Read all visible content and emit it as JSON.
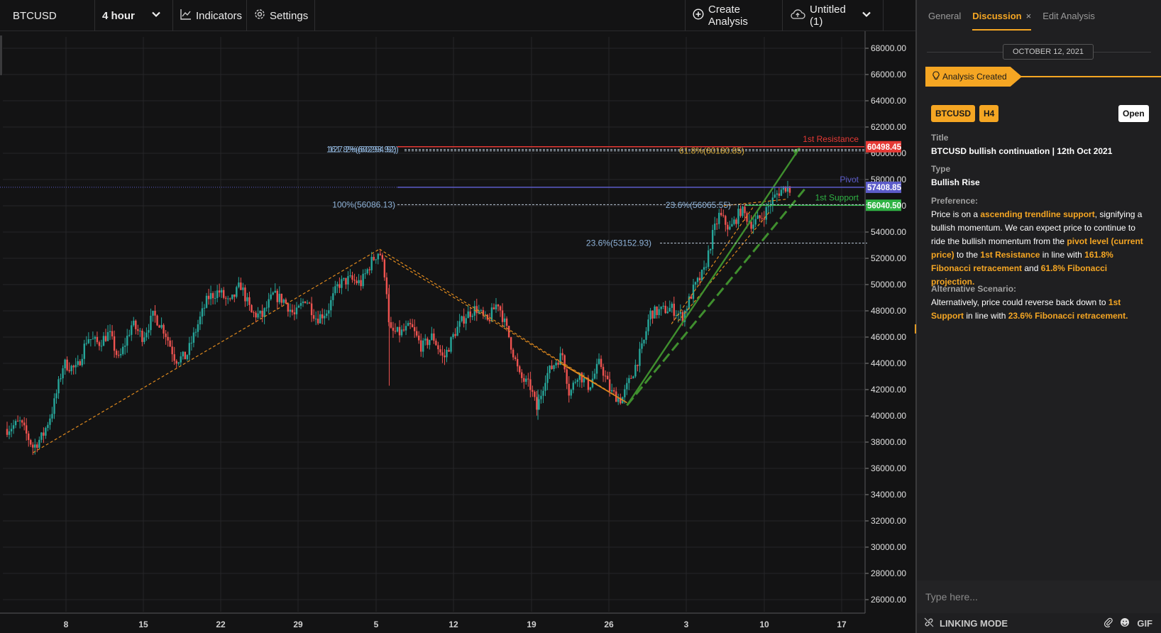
{
  "toolbar": {
    "symbol": "BTCUSD",
    "resolution": "4 hour",
    "indicators": "Indicators",
    "settings": "Settings",
    "create_analysis": "Create Analysis",
    "layout_name": "Untitled (1)"
  },
  "colors": {
    "up": "#26a69a",
    "down": "#ef5350",
    "accent": "#f5a623",
    "resistance": "#e53935",
    "pivot": "#5c5cc9",
    "support": "#2fb344",
    "fib": "#8fb3d9",
    "trend": "#e08a1e"
  },
  "chart_data": {
    "type": "candlestick",
    "price_axis": [
      "68000.00",
      "66000.00",
      "64000.00",
      "62000.00",
      "60000.00",
      "58000.00",
      "56000.00",
      "54000.00",
      "52000.00",
      "50000.00",
      "48000.00",
      "46000.00",
      "44000.00",
      "42000.00",
      "40000.00",
      "38000.00",
      "36000.00",
      "34000.00",
      "32000.00",
      "30000.00",
      "28000.00",
      "26000.00"
    ],
    "ylim": [
      25000,
      69500
    ],
    "time_axis": [
      "8",
      "15",
      "22",
      "29",
      "5",
      "12",
      "19",
      "26",
      "3",
      "10",
      "17"
    ],
    "anchor_points": [
      {
        "t": 0,
        "v": 39000
      },
      {
        "t": 1.2,
        "v": 39500
      },
      {
        "t": 2.4,
        "v": 37600
      },
      {
        "t": 3.3,
        "v": 38500
      },
      {
        "t": 4.2,
        "v": 40500
      },
      {
        "t": 5.2,
        "v": 44000
      },
      {
        "t": 6.4,
        "v": 43500
      },
      {
        "t": 7.4,
        "v": 46000
      },
      {
        "t": 8.4,
        "v": 45500
      },
      {
        "t": 9.4,
        "v": 46300
      },
      {
        "t": 10.3,
        "v": 44200
      },
      {
        "t": 11.5,
        "v": 47000
      },
      {
        "t": 12.5,
        "v": 46000
      },
      {
        "t": 13.5,
        "v": 47700
      },
      {
        "t": 14.5,
        "v": 46500
      },
      {
        "t": 15.5,
        "v": 44300
      },
      {
        "t": 16.5,
        "v": 44500
      },
      {
        "t": 17.5,
        "v": 46800
      },
      {
        "t": 18.5,
        "v": 49000
      },
      {
        "t": 19.5,
        "v": 49500
      },
      {
        "t": 20.5,
        "v": 48500
      },
      {
        "t": 21.5,
        "v": 50000
      },
      {
        "t": 22.5,
        "v": 47800
      },
      {
        "t": 23.5,
        "v": 47600
      },
      {
        "t": 24.5,
        "v": 49200
      },
      {
        "t": 25.5,
        "v": 48800
      },
      {
        "t": 26.5,
        "v": 47600
      },
      {
        "t": 27.5,
        "v": 49000
      },
      {
        "t": 28.5,
        "v": 47400
      },
      {
        "t": 29.5,
        "v": 48000
      },
      {
        "t": 30.5,
        "v": 50000
      },
      {
        "t": 31.5,
        "v": 50400
      },
      {
        "t": 32.6,
        "v": 50100
      },
      {
        "t": 33.6,
        "v": 51800
      },
      {
        "t": 34.3,
        "v": 52600
      },
      {
        "t": 34.9,
        "v": 50400
      },
      {
        "t": 35.2,
        "v": 46400
      },
      {
        "t": 36.2,
        "v": 46300
      },
      {
        "t": 37.2,
        "v": 46800
      },
      {
        "t": 38.2,
        "v": 45200
      },
      {
        "t": 39.2,
        "v": 46100
      },
      {
        "t": 40.2,
        "v": 44300
      },
      {
        "t": 41.2,
        "v": 46300
      },
      {
        "t": 42.2,
        "v": 47600
      },
      {
        "t": 43.2,
        "v": 48200
      },
      {
        "t": 44.2,
        "v": 47100
      },
      {
        "t": 45.2,
        "v": 48700
      },
      {
        "t": 46.2,
        "v": 46100
      },
      {
        "t": 47.2,
        "v": 43000
      },
      {
        "t": 48.2,
        "v": 42200
      },
      {
        "t": 48.8,
        "v": 40500
      },
      {
        "t": 49.6,
        "v": 43000
      },
      {
        "t": 50.6,
        "v": 44200
      },
      {
        "t": 51.2,
        "v": 44700
      },
      {
        "t": 51.8,
        "v": 41600
      },
      {
        "t": 52.6,
        "v": 43300
      },
      {
        "t": 53.6,
        "v": 42200
      },
      {
        "t": 54.6,
        "v": 44100
      },
      {
        "t": 55.6,
        "v": 41800
      },
      {
        "t": 56.6,
        "v": 41200
      },
      {
        "t": 57.6,
        "v": 43200
      },
      {
        "t": 58.6,
        "v": 45400
      },
      {
        "t": 59.2,
        "v": 47800
      },
      {
        "t": 60.2,
        "v": 48000
      },
      {
        "t": 61.2,
        "v": 48200
      },
      {
        "t": 62.2,
        "v": 47500
      },
      {
        "t": 63.2,
        "v": 49600
      },
      {
        "t": 64.2,
        "v": 51000
      },
      {
        "t": 65.0,
        "v": 53800
      },
      {
        "t": 65.6,
        "v": 55300
      },
      {
        "t": 66.6,
        "v": 54200
      },
      {
        "t": 67.6,
        "v": 55700
      },
      {
        "t": 68.6,
        "v": 54600
      },
      {
        "t": 69.6,
        "v": 55200
      },
      {
        "t": 70.4,
        "v": 56300
      },
      {
        "t": 71.0,
        "v": 57000
      },
      {
        "t": 71.8,
        "v": 57500
      },
      {
        "t": 72.3,
        "v": 57100
      }
    ],
    "levels": [
      {
        "label": "1st Resistance",
        "value": 60498.45,
        "tag": "60498.45"
      },
      {
        "label": "Pivot",
        "value": 57408.85,
        "tag": "57408.85"
      },
      {
        "label": "1st Support",
        "value": 56040.5,
        "tag": "56040.50"
      }
    ],
    "fib_labels": [
      {
        "text": "161.8%(60293.92)",
        "value": 60290
      },
      {
        "text": "127.2%(60294.92)",
        "value": 60290
      },
      {
        "text": "61.8%(60180.85)",
        "value": 60180.85
      },
      {
        "text": "100%(56086.13)",
        "value": 56086.13
      },
      {
        "text": "23.6%(56065.55)",
        "value": 56065.55
      },
      {
        "text": "23.6%(53152.93)",
        "value": 53152.93
      }
    ]
  },
  "panel": {
    "tabs": [
      "General",
      "Discussion",
      "Edit Analysis"
    ],
    "active_tab_close": "×",
    "date": "OCTOBER 12, 2021",
    "event": "Analysis Created",
    "badges": [
      "BTCUSD",
      "H4"
    ],
    "open_label": "Open",
    "title_label": "Title",
    "title_value": "BTCUSD bullish continuation | 12th Oct 2021",
    "type_label": "Type",
    "type_value": "Bullish Rise",
    "pref_label": "Preference:",
    "pref": {
      "t1": "Price is on a ",
      "h1": "ascending trendline support",
      "t2": ", signifying a bullish momentum. We can expect price to continue to ride the bullish momentum from the ",
      "h2": "pivot level (current price)",
      "t3": " to the ",
      "h3": "1st Resistance",
      "t4": " in line with ",
      "h4": "161.8% Fibonacci retracement",
      "t5": " and ",
      "h5": "61.8% Fibonacci projection."
    },
    "alt_label": "Alternative Scenario:",
    "alt": {
      "t1": "Alternatively, price could reverse back down to ",
      "h1": "1st Support",
      "t2": " in line with ",
      "h2": "23.6% Fibonacci retracement."
    },
    "input_placeholder": "Type here...",
    "footer_mode": "LINKING MODE",
    "footer_gif": "GIF"
  }
}
